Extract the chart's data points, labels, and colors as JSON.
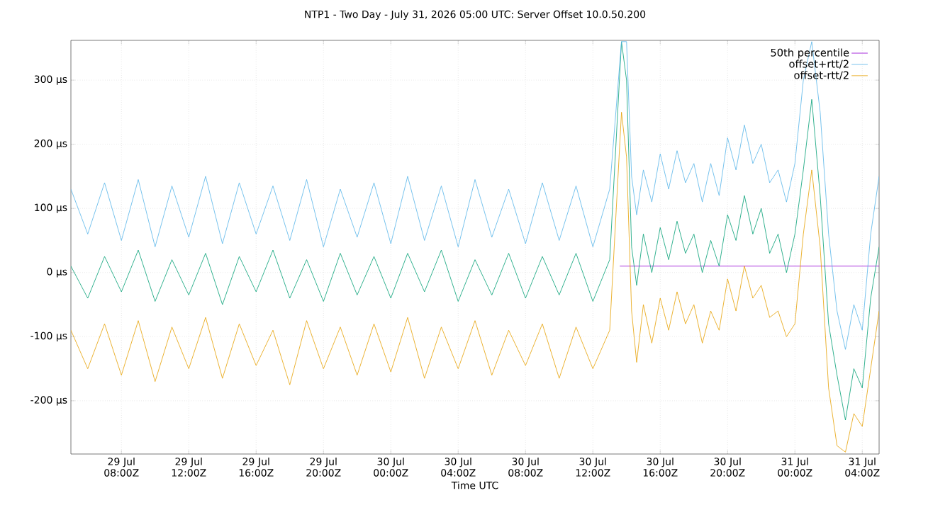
{
  "chart_data": {
    "type": "line",
    "title": "NTP1 - Two Day - July 31, 2026 05:00 UTC: Server Offset 10.0.50.200",
    "xlabel": "Time UTC",
    "xlim": [
      "2026-07-29T05:00",
      "2026-07-31T05:00"
    ],
    "xticks": [
      {
        "value": "2026-07-29T08:00",
        "label": "29 Jul 08:00Z"
      },
      {
        "value": "2026-07-29T12:00",
        "label": "29 Jul 12:00Z"
      },
      {
        "value": "2026-07-29T16:00",
        "label": "29 Jul 16:00Z"
      },
      {
        "value": "2026-07-29T20:00",
        "label": "29 Jul 20:00Z"
      },
      {
        "value": "2026-07-30T00:00",
        "label": "30 Jul 00:00Z"
      },
      {
        "value": "2026-07-30T04:00",
        "label": "30 Jul 04:00Z"
      },
      {
        "value": "2026-07-30T08:00",
        "label": "30 Jul 08:00Z"
      },
      {
        "value": "2026-07-30T12:00",
        "label": "30 Jul 12:00Z"
      },
      {
        "value": "2026-07-30T16:00",
        "label": "30 Jul 16:00Z"
      },
      {
        "value": "2026-07-30T20:00",
        "label": "30 Jul 20:00Z"
      },
      {
        "value": "2026-07-31T00:00",
        "label": "31 Jul 00:00Z"
      },
      {
        "value": "2026-07-31T04:00",
        "label": "31 Jul 04:00Z"
      }
    ],
    "ylim": [
      -283,
      362
    ],
    "yticks": [
      {
        "value": -200,
        "label": "-200 µs"
      },
      {
        "value": -100,
        "label": "-100 µs"
      },
      {
        "value": 0,
        "label": "0 µs"
      },
      {
        "value": 100,
        "label": "100 µs"
      },
      {
        "value": 200,
        "label": "200 µs"
      },
      {
        "value": 300,
        "label": "300 µs"
      }
    ],
    "grid": true,
    "legend": "top right",
    "marker": "none",
    "line_style": "solid",
    "x": [
      "2026-07-29T05:00",
      "2026-07-29T06:00",
      "2026-07-29T07:00",
      "2026-07-29T08:00",
      "2026-07-29T09:00",
      "2026-07-29T10:00",
      "2026-07-29T11:00",
      "2026-07-29T12:00",
      "2026-07-29T13:00",
      "2026-07-29T14:00",
      "2026-07-29T15:00",
      "2026-07-29T16:00",
      "2026-07-29T17:00",
      "2026-07-29T18:00",
      "2026-07-29T19:00",
      "2026-07-29T20:00",
      "2026-07-29T21:00",
      "2026-07-29T22:00",
      "2026-07-29T23:00",
      "2026-07-30T00:00",
      "2026-07-30T01:00",
      "2026-07-30T02:00",
      "2026-07-30T03:00",
      "2026-07-30T04:00",
      "2026-07-30T05:00",
      "2026-07-30T06:00",
      "2026-07-30T07:00",
      "2026-07-30T08:00",
      "2026-07-30T09:00",
      "2026-07-30T10:00",
      "2026-07-30T11:00",
      "2026-07-30T12:00",
      "2026-07-30T13:00",
      "2026-07-30T13:42",
      "2026-07-30T14:00",
      "2026-07-30T14:18",
      "2026-07-30T14:36",
      "2026-07-30T15:00",
      "2026-07-30T15:30",
      "2026-07-30T16:00",
      "2026-07-30T16:30",
      "2026-07-30T17:00",
      "2026-07-30T17:30",
      "2026-07-30T18:00",
      "2026-07-30T18:30",
      "2026-07-30T19:00",
      "2026-07-30T19:30",
      "2026-07-30T20:00",
      "2026-07-30T20:30",
      "2026-07-30T21:00",
      "2026-07-30T21:30",
      "2026-07-30T22:00",
      "2026-07-30T22:30",
      "2026-07-30T23:00",
      "2026-07-30T23:30",
      "2026-07-31T00:00",
      "2026-07-31T00:30",
      "2026-07-31T01:00",
      "2026-07-31T01:30",
      "2026-07-31T02:00",
      "2026-07-31T02:30",
      "2026-07-31T03:00",
      "2026-07-31T03:30",
      "2026-07-31T04:00",
      "2026-07-31T04:30",
      "2026-07-31T05:00"
    ],
    "series": [
      {
        "name": "50th percentile",
        "color": "#9400d3",
        "x": [
          "2026-07-30T13:36",
          "2026-07-31T05:00"
        ],
        "values": [
          10,
          10
        ]
      },
      {
        "color": "#009e73",
        "values": [
          10,
          -40,
          25,
          -30,
          35,
          -45,
          20,
          -35,
          30,
          -50,
          25,
          -30,
          35,
          -40,
          20,
          -45,
          30,
          -35,
          25,
          -40,
          30,
          -30,
          35,
          -45,
          20,
          -35,
          30,
          -40,
          25,
          -35,
          30,
          -45,
          20,
          360,
          300,
          40,
          -20,
          60,
          0,
          70,
          20,
          80,
          30,
          60,
          0,
          50,
          10,
          90,
          50,
          120,
          60,
          100,
          30,
          60,
          0,
          60,
          160,
          270,
          120,
          -80,
          -160,
          -230,
          -150,
          -180,
          -40,
          40
        ]
      },
      {
        "name": "offset+rtt/2",
        "color": "#56b4e9",
        "values": [
          130,
          60,
          140,
          50,
          145,
          40,
          135,
          55,
          150,
          45,
          140,
          60,
          135,
          50,
          145,
          40,
          130,
          55,
          140,
          45,
          150,
          50,
          135,
          40,
          145,
          55,
          130,
          45,
          140,
          50,
          135,
          40,
          130,
          360,
          360,
          150,
          90,
          160,
          110,
          185,
          130,
          190,
          140,
          170,
          110,
          170,
          120,
          210,
          160,
          230,
          170,
          200,
          140,
          160,
          110,
          170,
          300,
          360,
          250,
          60,
          -60,
          -120,
          -50,
          -90,
          60,
          150
        ]
      },
      {
        "name": "offset-rtt/2",
        "color": "#e69f00",
        "values": [
          -90,
          -150,
          -80,
          -160,
          -75,
          -170,
          -85,
          -150,
          -70,
          -165,
          -80,
          -145,
          -90,
          -175,
          -75,
          -150,
          -85,
          -160,
          -80,
          -155,
          -70,
          -165,
          -85,
          -150,
          -75,
          -160,
          -90,
          -145,
          -80,
          -165,
          -85,
          -150,
          -90,
          250,
          180,
          -60,
          -140,
          -50,
          -110,
          -40,
          -90,
          -30,
          -80,
          -50,
          -110,
          -60,
          -90,
          -10,
          -60,
          10,
          -40,
          -20,
          -70,
          -60,
          -100,
          -80,
          60,
          160,
          40,
          -180,
          -270,
          -280,
          -220,
          -240,
          -150,
          -60
        ]
      }
    ]
  }
}
